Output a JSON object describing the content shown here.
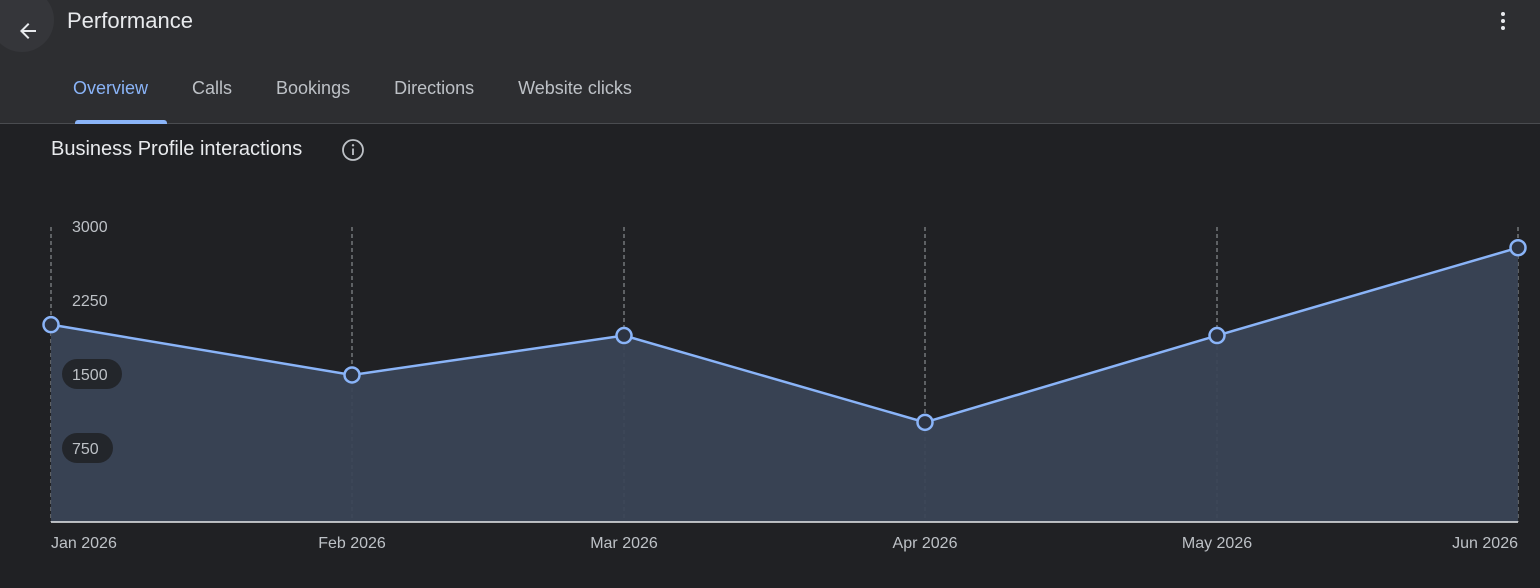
{
  "header": {
    "title": "Performance",
    "back_icon": "arrow-left-icon",
    "menu_icon": "more-vert-icon"
  },
  "tabs": [
    {
      "label": "Overview",
      "active": true
    },
    {
      "label": "Calls",
      "active": false
    },
    {
      "label": "Bookings",
      "active": false
    },
    {
      "label": "Directions",
      "active": false
    },
    {
      "label": "Website clicks",
      "active": false
    }
  ],
  "section": {
    "title": "Business Profile interactions",
    "info_icon": "info-icon"
  },
  "colors": {
    "accent": "#8ab4f8",
    "area_fill": "#3a4556",
    "background": "#202124",
    "header": "#2d2e31"
  },
  "chart_data": {
    "type": "area",
    "x": [
      "Jan 2026",
      "Feb 2026",
      "Mar 2026",
      "Apr 2026",
      "May 2026",
      "Jun 2026"
    ],
    "values": [
      2000,
      1490,
      1890,
      1010,
      1890,
      2780
    ],
    "yticks": [
      3000,
      2250,
      1500,
      750
    ],
    "ylim": [
      0,
      3000
    ],
    "grid": "vertical-dashed",
    "legend": "none"
  }
}
